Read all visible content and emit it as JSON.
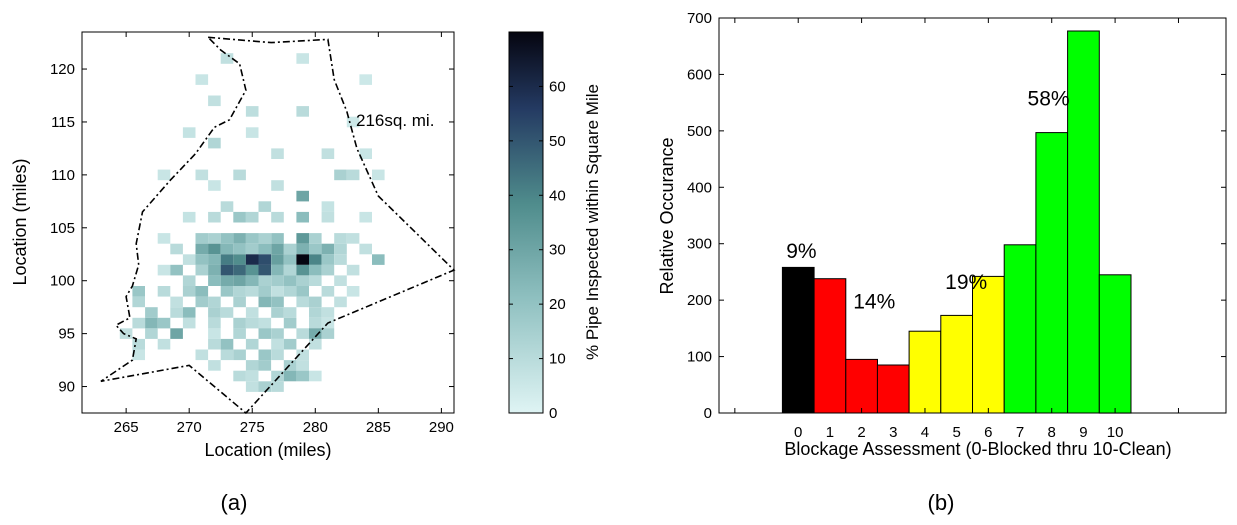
{
  "panel_a": {
    "caption": "(a)",
    "xlabel": "Location (miles)",
    "ylabel": "Location (miles)",
    "colorbar_label": "% Pipe Inspected within Square Mile",
    "area_annotation": "216sq. mi."
  },
  "panel_b": {
    "caption": "(b)",
    "xlabel": "Blockage Assessment (0-Blocked thru 10-Clean)",
    "ylabel": "Relative Occurance"
  },
  "chart_data": [
    {
      "type": "heatmap",
      "xlabel": "Location (miles)",
      "ylabel": "Location (miles)",
      "xlim": [
        261.5,
        291
      ],
      "ylim": [
        87.5,
        123.5
      ],
      "xticks": [
        265,
        270,
        275,
        280,
        285,
        290
      ],
      "yticks": [
        90,
        95,
        100,
        105,
        110,
        115,
        120
      ],
      "colorbar": {
        "label": "% Pipe Inspected within Square Mile",
        "range": [
          0,
          70
        ],
        "ticks": [
          0,
          10,
          20,
          30,
          40,
          50,
          60
        ]
      },
      "annotations": [
        "216sq. mi."
      ],
      "colors": {
        "low": "#d8f1f1",
        "mid": "#4f8c8c",
        "high": "#0c0c1c",
        "boundary": "#000000"
      },
      "boundary": [
        [
          271.5,
          123.0
        ],
        [
          276.5,
          122.5
        ],
        [
          281.0,
          122.8
        ],
        [
          281.5,
          119.0
        ],
        [
          282.5,
          116.0
        ],
        [
          283.3,
          112.5
        ],
        [
          285.0,
          108.0
        ],
        [
          291.0,
          101.0
        ],
        [
          281.0,
          96.0
        ],
        [
          274.5,
          87.5
        ],
        [
          270.0,
          92.0
        ],
        [
          263.0,
          90.5
        ],
        [
          265.5,
          92.5
        ],
        [
          265.8,
          94.5
        ],
        [
          264.8,
          95.0
        ],
        [
          264.2,
          95.8
        ],
        [
          265.3,
          96.5
        ],
        [
          265.0,
          98.5
        ],
        [
          265.5,
          99.5
        ],
        [
          266.0,
          101.5
        ],
        [
          265.8,
          103.5
        ],
        [
          266.3,
          106.5
        ],
        [
          268.5,
          109.5
        ],
        [
          270.5,
          112.0
        ],
        [
          272.0,
          114.5
        ],
        [
          273.2,
          115.2
        ],
        [
          274.5,
          118.0
        ],
        [
          274.0,
          120.5
        ],
        [
          272.5,
          121.8
        ],
        [
          271.5,
          123.0
        ]
      ],
      "cells": [
        [
          273,
          121,
          8
        ],
        [
          279,
          121,
          6
        ],
        [
          271,
          119,
          6
        ],
        [
          284,
          119,
          5
        ],
        [
          272,
          117,
          8
        ],
        [
          275,
          116,
          9
        ],
        [
          279,
          116,
          10
        ],
        [
          283,
          115,
          5
        ],
        [
          270,
          114,
          7
        ],
        [
          275,
          114,
          6
        ],
        [
          272,
          113,
          12
        ],
        [
          277,
          112,
          8
        ],
        [
          281,
          112,
          8
        ],
        [
          284,
          112,
          6
        ],
        [
          268,
          110,
          6
        ],
        [
          271,
          110,
          8
        ],
        [
          274,
          110,
          10
        ],
        [
          282,
          110,
          14
        ],
        [
          283,
          110,
          10
        ],
        [
          285,
          110,
          6
        ],
        [
          272,
          109,
          6
        ],
        [
          277,
          109,
          8
        ],
        [
          279,
          108,
          30
        ],
        [
          273,
          107,
          10
        ],
        [
          276,
          107,
          12
        ],
        [
          281,
          107,
          7
        ],
        [
          284,
          106,
          6
        ],
        [
          270,
          106,
          7
        ],
        [
          272,
          106,
          10
        ],
        [
          274,
          106,
          18
        ],
        [
          275,
          106,
          12
        ],
        [
          277,
          106,
          10
        ],
        [
          279,
          106,
          22
        ],
        [
          281,
          106,
          8
        ],
        [
          268,
          104,
          6
        ],
        [
          271,
          104,
          16
        ],
        [
          272,
          104,
          14
        ],
        [
          273,
          104,
          20
        ],
        [
          274,
          104,
          26
        ],
        [
          275,
          104,
          18
        ],
        [
          276,
          104,
          14
        ],
        [
          277,
          104,
          20
        ],
        [
          279,
          104,
          34
        ],
        [
          280,
          104,
          14
        ],
        [
          282,
          104,
          10
        ],
        [
          283,
          104,
          8
        ],
        [
          269,
          103,
          10
        ],
        [
          271,
          103,
          28
        ],
        [
          272,
          103,
          36
        ],
        [
          273,
          103,
          24
        ],
        [
          274,
          103,
          20
        ],
        [
          275,
          103,
          16
        ],
        [
          276,
          103,
          22
        ],
        [
          277,
          103,
          30
        ],
        [
          278,
          103,
          14
        ],
        [
          279,
          103,
          26
        ],
        [
          280,
          103,
          18
        ],
        [
          281,
          103,
          26
        ],
        [
          282,
          103,
          12
        ],
        [
          284,
          103,
          8
        ],
        [
          270,
          102,
          8
        ],
        [
          271,
          102,
          20
        ],
        [
          272,
          102,
          24
        ],
        [
          273,
          102,
          42
        ],
        [
          274,
          102,
          38
        ],
        [
          275,
          102,
          60
        ],
        [
          276,
          102,
          52
        ],
        [
          277,
          102,
          32
        ],
        [
          278,
          102,
          20
        ],
        [
          279,
          102,
          70
        ],
        [
          280,
          102,
          40
        ],
        [
          281,
          102,
          18
        ],
        [
          282,
          102,
          10
        ],
        [
          285,
          102,
          22
        ],
        [
          268,
          101,
          6
        ],
        [
          269,
          101,
          20
        ],
        [
          271,
          101,
          14
        ],
        [
          272,
          101,
          26
        ],
        [
          273,
          101,
          50
        ],
        [
          274,
          101,
          46
        ],
        [
          275,
          101,
          36
        ],
        [
          276,
          101,
          50
        ],
        [
          277,
          101,
          24
        ],
        [
          278,
          101,
          12
        ],
        [
          279,
          101,
          36
        ],
        [
          280,
          101,
          22
        ],
        [
          281,
          101,
          14
        ],
        [
          283,
          101,
          8
        ],
        [
          270,
          100,
          12
        ],
        [
          272,
          100,
          22
        ],
        [
          273,
          100,
          28
        ],
        [
          274,
          100,
          30
        ],
        [
          275,
          100,
          24
        ],
        [
          276,
          100,
          14
        ],
        [
          277,
          100,
          16
        ],
        [
          278,
          100,
          20
        ],
        [
          279,
          100,
          14
        ],
        [
          280,
          100,
          10
        ],
        [
          282,
          100,
          8
        ],
        [
          266,
          99,
          18
        ],
        [
          268,
          99,
          10
        ],
        [
          270,
          99,
          14
        ],
        [
          271,
          99,
          22
        ],
        [
          273,
          99,
          18
        ],
        [
          274,
          99,
          12
        ],
        [
          275,
          99,
          10
        ],
        [
          276,
          99,
          16
        ],
        [
          277,
          99,
          8
        ],
        [
          278,
          99,
          12
        ],
        [
          279,
          99,
          18
        ],
        [
          281,
          99,
          10
        ],
        [
          283,
          99,
          6
        ],
        [
          266,
          98,
          12
        ],
        [
          269,
          98,
          8
        ],
        [
          271,
          98,
          16
        ],
        [
          272,
          98,
          12
        ],
        [
          274,
          98,
          14
        ],
        [
          276,
          98,
          24
        ],
        [
          277,
          98,
          20
        ],
        [
          279,
          98,
          10
        ],
        [
          280,
          98,
          14
        ],
        [
          282,
          98,
          8
        ],
        [
          267,
          97,
          16
        ],
        [
          269,
          97,
          10
        ],
        [
          270,
          97,
          22
        ],
        [
          272,
          97,
          14
        ],
        [
          273,
          97,
          10
        ],
        [
          275,
          97,
          8
        ],
        [
          277,
          97,
          14
        ],
        [
          278,
          97,
          10
        ],
        [
          280,
          97,
          12
        ],
        [
          281,
          97,
          8
        ],
        [
          266,
          96,
          10
        ],
        [
          267,
          96,
          24
        ],
        [
          268,
          96,
          18
        ],
        [
          270,
          96,
          8
        ],
        [
          272,
          96,
          10
        ],
        [
          274,
          96,
          14
        ],
        [
          275,
          96,
          10
        ],
        [
          276,
          96,
          8
        ],
        [
          278,
          96,
          16
        ],
        [
          280,
          96,
          10
        ],
        [
          281,
          96,
          6
        ],
        [
          265,
          95,
          8
        ],
        [
          267,
          95,
          12
        ],
        [
          269,
          95,
          30
        ],
        [
          272,
          95,
          6
        ],
        [
          274,
          95,
          12
        ],
        [
          276,
          95,
          18
        ],
        [
          277,
          95,
          14
        ],
        [
          279,
          95,
          10
        ],
        [
          280,
          95,
          28
        ],
        [
          281,
          95,
          14
        ],
        [
          266,
          94,
          10
        ],
        [
          268,
          94,
          8
        ],
        [
          272,
          94,
          10
        ],
        [
          273,
          94,
          20
        ],
        [
          275,
          94,
          12
        ],
        [
          277,
          94,
          8
        ],
        [
          278,
          94,
          16
        ],
        [
          280,
          94,
          8
        ],
        [
          266,
          93,
          6
        ],
        [
          271,
          93,
          8
        ],
        [
          273,
          93,
          10
        ],
        [
          274,
          93,
          14
        ],
        [
          276,
          93,
          18
        ],
        [
          277,
          93,
          10
        ],
        [
          279,
          93,
          8
        ],
        [
          272,
          92,
          8
        ],
        [
          275,
          92,
          12
        ],
        [
          276,
          92,
          16
        ],
        [
          278,
          92,
          14
        ],
        [
          279,
          92,
          8
        ],
        [
          274,
          91,
          10
        ],
        [
          275,
          91,
          8
        ],
        [
          277,
          91,
          12
        ],
        [
          278,
          91,
          24
        ],
        [
          279,
          91,
          18
        ],
        [
          280,
          91,
          6
        ],
        [
          275,
          90,
          8
        ],
        [
          276,
          90,
          14
        ],
        [
          277,
          90,
          10
        ]
      ]
    },
    {
      "type": "bar",
      "xlabel": "Blockage Assessment (0-Blocked thru 10-Clean)",
      "ylabel": "Relative Occurance",
      "xlim": [
        -2.5,
        13.5
      ],
      "ylim": [
        0,
        700
      ],
      "yticks": [
        0,
        100,
        200,
        300,
        400,
        500,
        600,
        700
      ],
      "categories": [
        "0",
        "1",
        "2",
        "3",
        "4",
        "5",
        "6",
        "7",
        "8",
        "9",
        "10"
      ],
      "values": [
        258,
        238,
        95,
        85,
        145,
        173,
        242,
        298,
        497,
        677,
        245
      ],
      "bar_colors": [
        "#000000",
        "#ff0000",
        "#ff0000",
        "#ff0000",
        "#ffff00",
        "#ffff00",
        "#ffff00",
        "#00ff00",
        "#00ff00",
        "#00ff00",
        "#00ff00"
      ],
      "annotations": [
        {
          "text": "9%",
          "x": 0.1,
          "y": 275
        },
        {
          "text": "14%",
          "x": 2.4,
          "y": 185
        },
        {
          "text": "19%",
          "x": 5.3,
          "y": 220
        },
        {
          "text": "58%",
          "x": 7.9,
          "y": 545
        }
      ]
    }
  ]
}
